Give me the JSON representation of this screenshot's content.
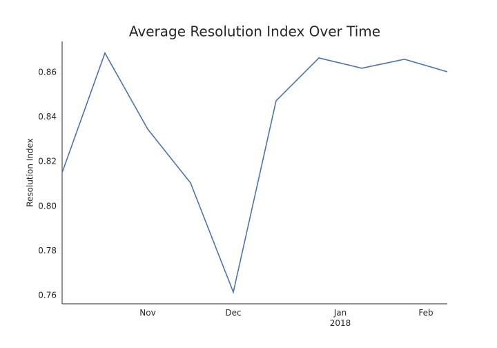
{
  "chart_data": {
    "type": "line",
    "title": "Average Resolution Index Over Time",
    "ylabel": "Resolution Index",
    "x": [
      0,
      1,
      2,
      3,
      4,
      5,
      6,
      7,
      8,
      9
    ],
    "series": [
      {
        "name": "Resolution Index",
        "color": "#4c72b0",
        "values": [
          0.8151,
          0.8687,
          0.8346,
          0.8105,
          0.7615,
          0.8473,
          0.8665,
          0.8619,
          0.8659,
          0.8603
        ]
      }
    ],
    "xlim": [
      0,
      9
    ],
    "xticks": [
      {
        "value": 2,
        "label": "Nov"
      },
      {
        "value": 4,
        "label": "Dec"
      },
      {
        "value": 6.5,
        "label": "Jan\n2018"
      },
      {
        "value": 8.5,
        "label": "Feb"
      }
    ],
    "ylim": [
      0.7563,
      0.8739
    ],
    "yticks": [
      0.76,
      0.78,
      {
        "value": 0.8,
        "label": "0.80"
      },
      0.82,
      0.84,
      0.86
    ],
    "grid": false
  }
}
